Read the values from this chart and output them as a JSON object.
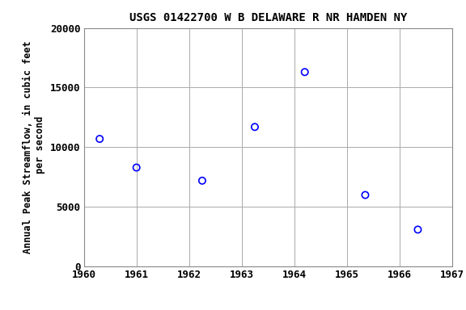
{
  "title": "USGS 01422700 W B DELAWARE R NR HAMDEN NY",
  "xlabel": "",
  "ylabel": "Annual Peak Streamflow, in cubic feet\n per second",
  "xlim": [
    1960,
    1967
  ],
  "ylim": [
    0,
    20000
  ],
  "xticks": [
    1960,
    1961,
    1962,
    1963,
    1964,
    1965,
    1966,
    1967
  ],
  "yticks": [
    0,
    5000,
    10000,
    15000,
    20000
  ],
  "x": [
    1960.3,
    1961.0,
    1962.25,
    1963.25,
    1964.2,
    1965.35,
    1966.35
  ],
  "y": [
    10700,
    8300,
    7200,
    11700,
    16300,
    6000,
    3100
  ],
  "marker_color": "blue",
  "marker_face": "none",
  "marker_size": 6,
  "marker_style": "o",
  "grid_color": "#aaaaaa",
  "background_color": "#ffffff",
  "title_fontsize": 10,
  "label_fontsize": 8.5,
  "tick_fontsize": 9
}
